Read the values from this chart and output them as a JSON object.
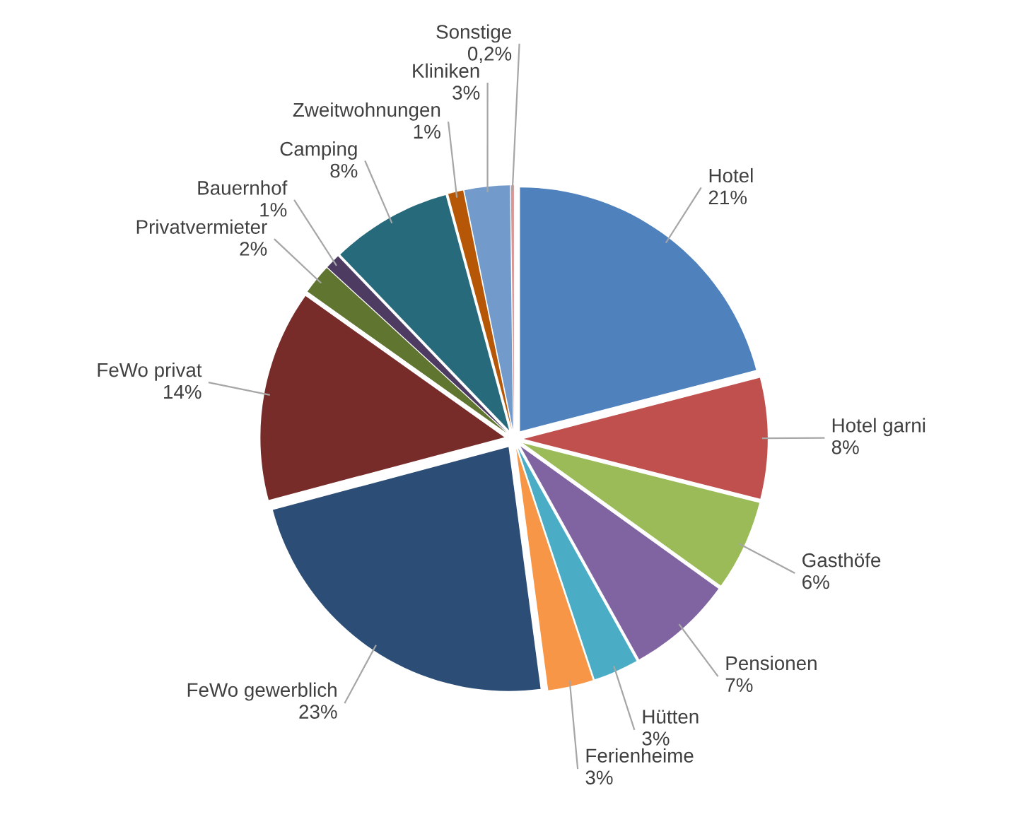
{
  "chart_data": {
    "type": "pie",
    "categories": [
      "Hotel",
      "Hotel garni",
      "Gasthöfe",
      "Pensionen",
      "Hütten",
      "Ferienheime",
      "FeWo gewerblich",
      "FeWo privat",
      "Privatvermieter",
      "Bauernhof",
      "Camping",
      "Zweitwohnungen",
      "Kliniken",
      "Sonstige"
    ],
    "values": [
      21,
      8,
      6,
      7,
      3,
      3,
      23,
      14,
      2,
      1,
      8,
      1,
      3,
      0.2
    ],
    "value_labels": [
      "21%",
      "8%",
      "6%",
      "7%",
      "3%",
      "3%",
      "23%",
      "14%",
      "2%",
      "1%",
      "8%",
      "1%",
      "3%",
      "0,2%"
    ],
    "colors": [
      "#4f81bd",
      "#c0504d",
      "#9bbb59",
      "#8064a2",
      "#4bacc6",
      "#f79646",
      "#2c4d75",
      "#772c2a",
      "#5f7530",
      "#4d3b62",
      "#276a7c",
      "#b65708",
      "#729aca",
      "#d99694"
    ]
  }
}
